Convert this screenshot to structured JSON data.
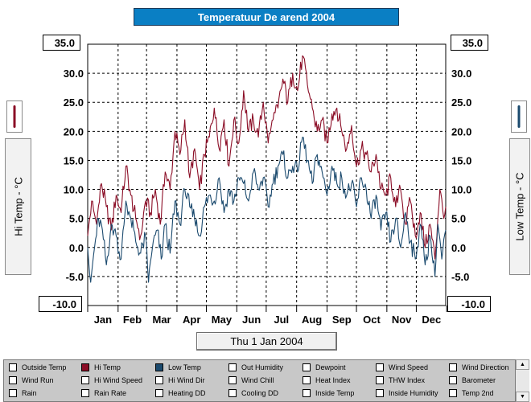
{
  "title": "Temperatuur De arend 2004",
  "date_button": "Thu 1 Jan 2004",
  "left_axis": {
    "top_value": "35.0",
    "bottom_value": "-10.0",
    "title": "Hi Temp - °C"
  },
  "right_axis": {
    "top_value": "35.0",
    "bottom_value": "-10.0",
    "title": "Low Temp - °C"
  },
  "colors": {
    "hi": "#8b0d26",
    "low": "#1b4a6e",
    "title_bg": "#0a7fc4"
  },
  "chart_data": {
    "type": "line",
    "x": "day of year 2004 (1 Jan - 31 Dec)",
    "ylim": [
      -10,
      35
    ],
    "yticks": [
      "35.0",
      "30.0",
      "25.0",
      "20.0",
      "15.0",
      "10.0",
      "5.0",
      "0.0",
      "-5.0",
      "-10.0"
    ],
    "categories": [
      "Jan",
      "Feb",
      "Mar",
      "Apr",
      "May",
      "Jun",
      "Jul",
      "Aug",
      "Sep",
      "Oct",
      "Nov",
      "Dec"
    ],
    "grid": true,
    "series": [
      {
        "name": "Hi Temp",
        "color": "#8b0d26",
        "anchors": [
          [
            1,
            2
          ],
          [
            5,
            8
          ],
          [
            10,
            4
          ],
          [
            15,
            11
          ],
          [
            20,
            7
          ],
          [
            25,
            3
          ],
          [
            30,
            9
          ],
          [
            35,
            6
          ],
          [
            40,
            14
          ],
          [
            45,
            9
          ],
          [
            50,
            5
          ],
          [
            55,
            2
          ],
          [
            60,
            8
          ],
          [
            65,
            6
          ],
          [
            70,
            10
          ],
          [
            75,
            4
          ],
          [
            80,
            13
          ],
          [
            85,
            10
          ],
          [
            90,
            20
          ],
          [
            95,
            16
          ],
          [
            100,
            22
          ],
          [
            105,
            12
          ],
          [
            110,
            17
          ],
          [
            115,
            10
          ],
          [
            120,
            16
          ],
          [
            125,
            19
          ],
          [
            130,
            24
          ],
          [
            135,
            17
          ],
          [
            140,
            22
          ],
          [
            145,
            14
          ],
          [
            150,
            22
          ],
          [
            155,
            18
          ],
          [
            160,
            27
          ],
          [
            165,
            20
          ],
          [
            170,
            22
          ],
          [
            175,
            19
          ],
          [
            180,
            25
          ],
          [
            185,
            18
          ],
          [
            190,
            22
          ],
          [
            195,
            24
          ],
          [
            200,
            29
          ],
          [
            205,
            25
          ],
          [
            210,
            30
          ],
          [
            215,
            27
          ],
          [
            220,
            33
          ],
          [
            225,
            28
          ],
          [
            230,
            24
          ],
          [
            235,
            20
          ],
          [
            240,
            22
          ],
          [
            245,
            18
          ],
          [
            250,
            23
          ],
          [
            255,
            24
          ],
          [
            260,
            20
          ],
          [
            265,
            17
          ],
          [
            270,
            21
          ],
          [
            275,
            14
          ],
          [
            280,
            17
          ],
          [
            285,
            16
          ],
          [
            290,
            13
          ],
          [
            295,
            16
          ],
          [
            300,
            10
          ],
          [
            305,
            9
          ],
          [
            310,
            12
          ],
          [
            315,
            7
          ],
          [
            320,
            10
          ],
          [
            325,
            4
          ],
          [
            330,
            8
          ],
          [
            335,
            2
          ],
          [
            340,
            6
          ],
          [
            345,
            0
          ],
          [
            350,
            4
          ],
          [
            355,
            -2
          ],
          [
            360,
            10
          ],
          [
            364,
            5
          ],
          [
            366,
            7
          ]
        ]
      },
      {
        "name": "Low Temp",
        "color": "#1b4a6e",
        "anchors": [
          [
            1,
            0
          ],
          [
            4,
            -6
          ],
          [
            8,
            0
          ],
          [
            12,
            5
          ],
          [
            16,
            3
          ],
          [
            20,
            -3
          ],
          [
            25,
            4
          ],
          [
            30,
            2
          ],
          [
            35,
            -2
          ],
          [
            40,
            8
          ],
          [
            45,
            5
          ],
          [
            50,
            1
          ],
          [
            55,
            -1
          ],
          [
            60,
            2
          ],
          [
            63,
            -6
          ],
          [
            67,
            0
          ],
          [
            72,
            3
          ],
          [
            76,
            -2
          ],
          [
            80,
            4
          ],
          [
            85,
            -1
          ],
          [
            90,
            8
          ],
          [
            95,
            4
          ],
          [
            100,
            10
          ],
          [
            105,
            7
          ],
          [
            110,
            5
          ],
          [
            115,
            2
          ],
          [
            120,
            7
          ],
          [
            125,
            9
          ],
          [
            130,
            8
          ],
          [
            135,
            12
          ],
          [
            140,
            6
          ],
          [
            145,
            10
          ],
          [
            150,
            8
          ],
          [
            155,
            12
          ],
          [
            160,
            11
          ],
          [
            165,
            8
          ],
          [
            170,
            13
          ],
          [
            175,
            10
          ],
          [
            180,
            12
          ],
          [
            185,
            7
          ],
          [
            190,
            11
          ],
          [
            195,
            14
          ],
          [
            200,
            16
          ],
          [
            205,
            12
          ],
          [
            210,
            14
          ],
          [
            215,
            13
          ],
          [
            220,
            19
          ],
          [
            225,
            15
          ],
          [
            230,
            11
          ],
          [
            235,
            16
          ],
          [
            240,
            13
          ],
          [
            245,
            9
          ],
          [
            250,
            14
          ],
          [
            255,
            11
          ],
          [
            260,
            12
          ],
          [
            265,
            9
          ],
          [
            270,
            11
          ],
          [
            275,
            7
          ],
          [
            280,
            12
          ],
          [
            285,
            10
          ],
          [
            290,
            5
          ],
          [
            295,
            9
          ],
          [
            300,
            3
          ],
          [
            305,
            6
          ],
          [
            310,
            1
          ],
          [
            315,
            5
          ],
          [
            320,
            0
          ],
          [
            325,
            6
          ],
          [
            330,
            1
          ],
          [
            335,
            -2
          ],
          [
            340,
            4
          ],
          [
            345,
            -3
          ],
          [
            350,
            2
          ],
          [
            355,
            -5
          ],
          [
            358,
            4
          ],
          [
            362,
            -2
          ],
          [
            366,
            3
          ]
        ]
      }
    ]
  },
  "legend_panel": {
    "rows": [
      [
        "Outside Temp",
        "Hi Temp",
        "Low Temp",
        "Out Humidity",
        "Dewpoint",
        "Wind Speed",
        "Wind Direction"
      ],
      [
        "Wind Run",
        "Hi Wind Speed",
        "Hi Wind Dir",
        "Wind Chill",
        "Heat Index",
        "THW Index",
        "Barometer"
      ],
      [
        "Rain",
        "Rain Rate",
        "Heating DD",
        "Cooling DD",
        "Inside Temp",
        "Inside Humidity",
        "Temp 2nd"
      ]
    ],
    "checked_colors": {
      "Hi Temp": "#8b0d26",
      "Low Temp": "#1b4a6e"
    }
  }
}
